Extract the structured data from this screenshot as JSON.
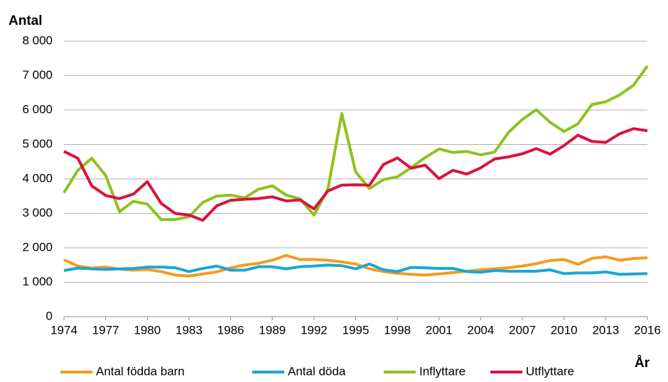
{
  "chart_data": {
    "type": "line",
    "y_label": "Antal",
    "x_label": "År",
    "x": [
      1974,
      1975,
      1976,
      1977,
      1978,
      1979,
      1980,
      1981,
      1982,
      1983,
      1984,
      1985,
      1986,
      1987,
      1988,
      1989,
      1990,
      1991,
      1992,
      1993,
      1994,
      1995,
      1996,
      1997,
      1998,
      1999,
      2000,
      2001,
      2002,
      2003,
      2004,
      2005,
      2006,
      2007,
      2008,
      2009,
      2010,
      2011,
      2012,
      2013,
      2014,
      2015,
      2016
    ],
    "xlim": [
      1974,
      2016
    ],
    "xticks": [
      1974,
      1977,
      1980,
      1983,
      1986,
      1989,
      1992,
      1995,
      1998,
      2001,
      2004,
      2007,
      2010,
      2013,
      2016
    ],
    "ylim": [
      0,
      8000
    ],
    "yticks": [
      0,
      {
        "value": 1000,
        "label": "1 000"
      },
      {
        "value": 2000,
        "label": "2 000"
      },
      {
        "value": 3000,
        "label": "3 000"
      },
      {
        "value": 4000,
        "label": "4 000"
      },
      {
        "value": 5000,
        "label": "5 000"
      },
      {
        "value": 6000,
        "label": "6 000"
      },
      {
        "value": 7000,
        "label": "7 000"
      },
      {
        "value": 8000,
        "label": "8 000"
      }
    ],
    "grid": true,
    "legend": "bottom",
    "series": [
      {
        "name": "Antal födda barn",
        "color": "#f79a1e",
        "values": [
          1650,
          1470,
          1410,
          1440,
          1380,
          1350,
          1370,
          1310,
          1210,
          1180,
          1240,
          1300,
          1420,
          1500,
          1550,
          1640,
          1780,
          1660,
          1660,
          1640,
          1590,
          1530,
          1390,
          1310,
          1260,
          1230,
          1210,
          1240,
          1280,
          1320,
          1360,
          1390,
          1420,
          1470,
          1540,
          1630,
          1660,
          1520,
          1690,
          1740,
          1640,
          1690,
          1710
        ]
      },
      {
        "name": "Antal döda",
        "color": "#1aa6d6",
        "values": [
          1340,
          1410,
          1390,
          1370,
          1390,
          1400,
          1440,
          1440,
          1420,
          1310,
          1400,
          1470,
          1350,
          1350,
          1450,
          1450,
          1390,
          1450,
          1470,
          1500,
          1480,
          1390,
          1530,
          1360,
          1310,
          1430,
          1420,
          1400,
          1400,
          1310,
          1290,
          1340,
          1320,
          1320,
          1320,
          1360,
          1250,
          1270,
          1270,
          1300,
          1230,
          1240,
          1250
        ]
      },
      {
        "name": "Inflyttare",
        "color": "#8dc21f",
        "values": [
          3600,
          4250,
          4600,
          4100,
          3050,
          3350,
          3270,
          2820,
          2820,
          2900,
          3320,
          3500,
          3530,
          3450,
          3700,
          3800,
          3530,
          3420,
          2950,
          3700,
          5900,
          4200,
          3720,
          3980,
          4060,
          4330,
          4620,
          4870,
          4770,
          4800,
          4700,
          4780,
          5350,
          5730,
          6010,
          5640,
          5380,
          5600,
          6160,
          6240,
          6440,
          6720,
          7280
        ]
      },
      {
        "name": "Utflyttare",
        "color": "#d9133e",
        "values": [
          4800,
          4600,
          3800,
          3520,
          3430,
          3560,
          3920,
          3290,
          3000,
          2950,
          2800,
          3220,
          3380,
          3410,
          3430,
          3480,
          3360,
          3390,
          3130,
          3650,
          3820,
          3830,
          3820,
          4420,
          4610,
          4310,
          4400,
          4010,
          4250,
          4140,
          4320,
          4580,
          4640,
          4730,
          4880,
          4720,
          4970,
          5270,
          5090,
          5060,
          5310,
          5460,
          5400
        ]
      }
    ]
  }
}
